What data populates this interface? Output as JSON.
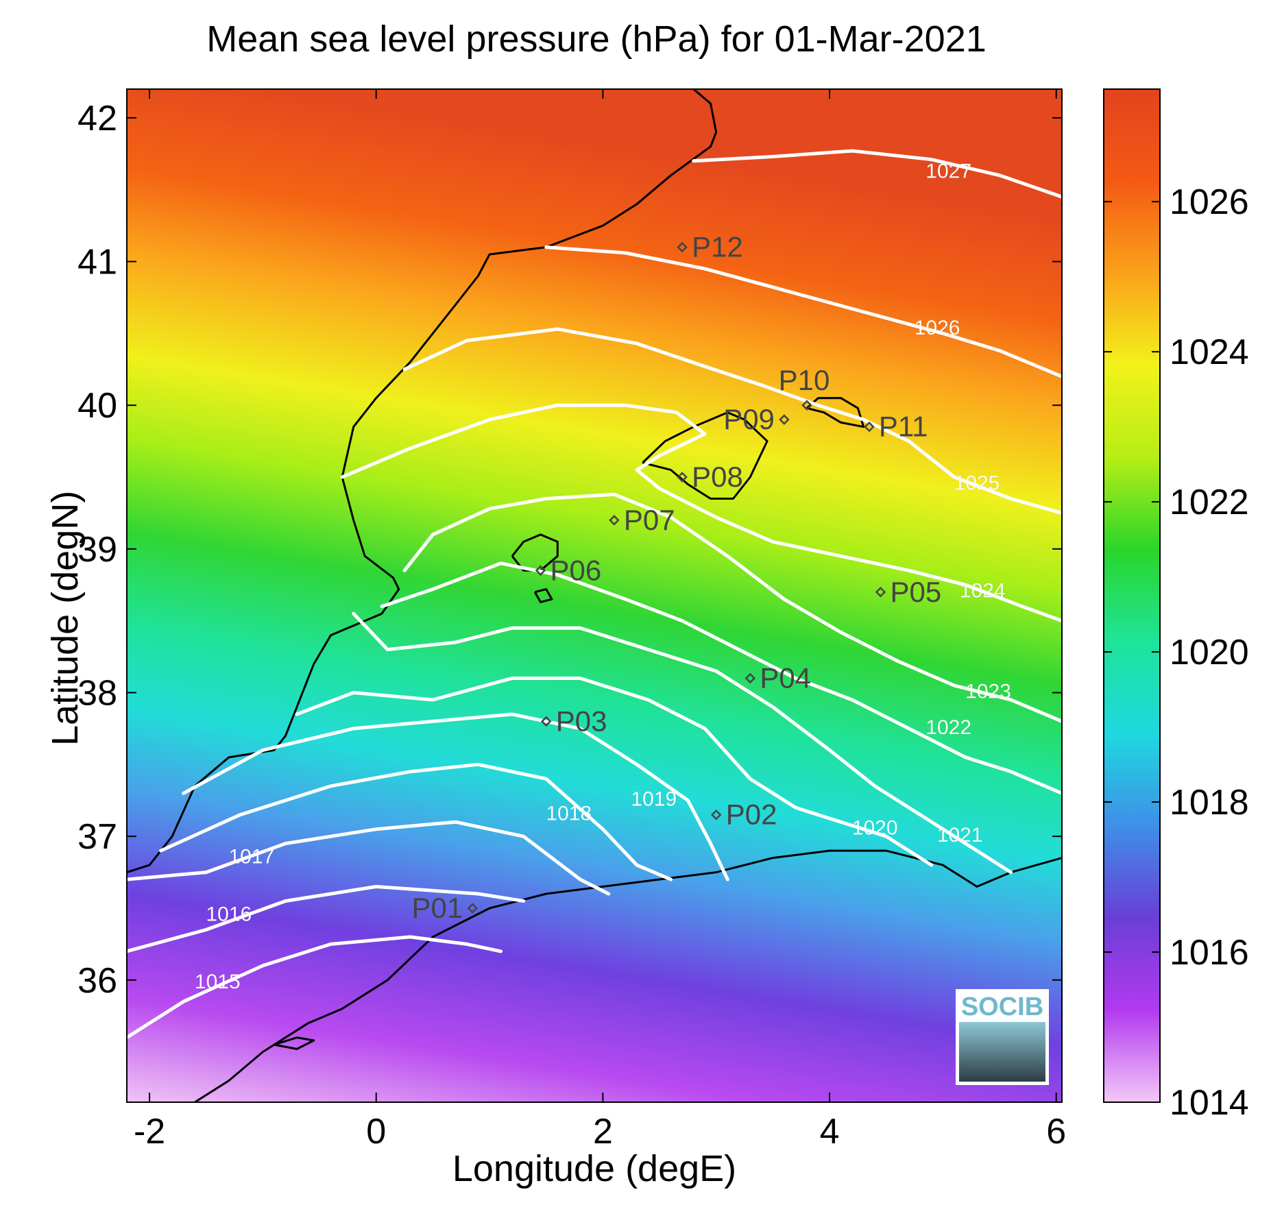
{
  "title": "Mean sea level pressure (hPa) for 01-Mar-2021",
  "xlabel": "Longitude (degE)",
  "ylabel": "Latitude (degN)",
  "logo_text": "SOCIB",
  "chart_data": {
    "type": "heatmap",
    "variable": "Mean sea level pressure",
    "units": "hPa",
    "date": "01-Mar-2021",
    "xlim": [
      -2.2,
      6.05
    ],
    "ylim": [
      35.15,
      42.2
    ],
    "xticks": [
      -2,
      0,
      2,
      4,
      6
    ],
    "yticks": [
      36,
      37,
      38,
      39,
      40,
      41,
      42
    ],
    "colorbar": {
      "range": [
        1014,
        1027.5
      ],
      "ticks": [
        1014,
        1016,
        1018,
        1020,
        1022,
        1024,
        1026
      ],
      "colors": [
        "#f3c8f6",
        "#b33af0",
        "#6a3ed6",
        "#3f8fe8",
        "#1fd8e0",
        "#1ee49a",
        "#2ad62a",
        "#b6ee16",
        "#f2f21a",
        "#fba11a",
        "#f45a14",
        "#e3431e"
      ]
    },
    "contour_levels": [
      1015,
      1016,
      1017,
      1018,
      1019,
      1020,
      1021,
      1022,
      1023,
      1024,
      1025,
      1026,
      1027
    ],
    "contours": [
      {
        "level": 1027,
        "points": [
          [
            2.8,
            41.7
          ],
          [
            3.5,
            41.73
          ],
          [
            4.2,
            41.77
          ],
          [
            4.9,
            41.71
          ],
          [
            5.5,
            41.6
          ],
          [
            6.05,
            41.45
          ]
        ],
        "label_at": [
          5.05,
          41.62
        ]
      },
      {
        "level": 1026,
        "points": [
          [
            1.5,
            41.1
          ],
          [
            2.2,
            41.06
          ],
          [
            2.9,
            40.95
          ],
          [
            3.6,
            40.8
          ],
          [
            4.3,
            40.65
          ],
          [
            5.0,
            40.5
          ],
          [
            5.5,
            40.38
          ],
          [
            6.05,
            40.2
          ]
        ],
        "label_at": [
          4.95,
          40.53
        ]
      },
      {
        "level": 1025,
        "points": [
          [
            0.25,
            40.25
          ],
          [
            0.8,
            40.45
          ],
          [
            1.6,
            40.53
          ],
          [
            2.3,
            40.43
          ],
          [
            2.9,
            40.27
          ],
          [
            3.4,
            40.14
          ],
          [
            3.9,
            40.0
          ],
          [
            4.3,
            39.9
          ],
          [
            4.7,
            39.75
          ],
          [
            5.1,
            39.5
          ],
          [
            5.6,
            39.35
          ],
          [
            6.05,
            39.25
          ]
        ],
        "label_at": [
          5.3,
          39.45
        ]
      },
      {
        "level": 1024,
        "points": [
          [
            -0.3,
            39.5
          ],
          [
            0.3,
            39.7
          ],
          [
            1.0,
            39.9
          ],
          [
            1.6,
            40.0
          ],
          [
            2.2,
            40.0
          ],
          [
            2.65,
            39.95
          ],
          [
            2.9,
            39.8
          ],
          [
            2.5,
            39.65
          ],
          [
            2.3,
            39.55
          ],
          [
            2.5,
            39.42
          ],
          [
            3.0,
            39.22
          ],
          [
            3.5,
            39.05
          ],
          [
            4.1,
            38.95
          ],
          [
            4.7,
            38.85
          ],
          [
            5.2,
            38.75
          ],
          [
            5.7,
            38.6
          ],
          [
            6.05,
            38.5
          ]
        ],
        "label_at": [
          5.35,
          38.7
        ]
      },
      {
        "level": 1023,
        "points": [
          [
            0.25,
            38.85
          ],
          [
            0.5,
            39.1
          ],
          [
            1.0,
            39.28
          ],
          [
            1.5,
            39.35
          ],
          [
            2.1,
            39.38
          ],
          [
            2.6,
            39.22
          ],
          [
            3.1,
            38.95
          ],
          [
            3.6,
            38.65
          ],
          [
            4.1,
            38.42
          ],
          [
            4.6,
            38.22
          ],
          [
            5.1,
            38.05
          ],
          [
            5.6,
            37.95
          ],
          [
            6.05,
            37.8
          ]
        ],
        "label_at": [
          5.4,
          38.0
        ]
      },
      {
        "level": 1022,
        "points": [
          [
            0.05,
            38.6
          ],
          [
            0.5,
            38.72
          ],
          [
            1.1,
            38.9
          ],
          [
            1.6,
            38.82
          ],
          [
            2.2,
            38.65
          ],
          [
            2.7,
            38.5
          ],
          [
            3.2,
            38.3
          ],
          [
            3.7,
            38.1
          ],
          [
            4.2,
            37.95
          ],
          [
            4.7,
            37.75
          ],
          [
            5.2,
            37.55
          ],
          [
            5.6,
            37.45
          ],
          [
            6.05,
            37.3
          ]
        ],
        "label_at": [
          5.05,
          37.75
        ]
      },
      {
        "level": 1021,
        "points": [
          [
            -0.2,
            38.55
          ],
          [
            0.1,
            38.3
          ],
          [
            0.7,
            38.35
          ],
          [
            1.2,
            38.45
          ],
          [
            1.8,
            38.45
          ],
          [
            2.4,
            38.3
          ],
          [
            3.0,
            38.15
          ],
          [
            3.5,
            37.9
          ],
          [
            4.0,
            37.6
          ],
          [
            4.4,
            37.35
          ],
          [
            4.8,
            37.15
          ],
          [
            5.2,
            36.95
          ],
          [
            5.6,
            36.75
          ]
        ],
        "label_at": [
          5.15,
          37.0
        ]
      },
      {
        "level": 1020,
        "points": [
          [
            -0.7,
            37.85
          ],
          [
            -0.2,
            38.0
          ],
          [
            0.5,
            37.95
          ],
          [
            1.2,
            38.1
          ],
          [
            1.8,
            38.1
          ],
          [
            2.4,
            37.95
          ],
          [
            2.9,
            37.75
          ],
          [
            3.3,
            37.4
          ],
          [
            3.7,
            37.2
          ],
          [
            4.1,
            37.1
          ],
          [
            4.5,
            37.0
          ],
          [
            4.9,
            36.8
          ]
        ],
        "label_at": [
          4.4,
          37.05
        ]
      },
      {
        "level": 1019,
        "points": [
          [
            -1.7,
            37.3
          ],
          [
            -1.0,
            37.6
          ],
          [
            -0.2,
            37.75
          ],
          [
            0.5,
            37.8
          ],
          [
            1.2,
            37.85
          ],
          [
            1.8,
            37.75
          ],
          [
            2.3,
            37.5
          ],
          [
            2.75,
            37.25
          ],
          [
            2.95,
            36.95
          ],
          [
            3.1,
            36.7
          ]
        ],
        "label_at": [
          2.45,
          37.25
        ]
      },
      {
        "level": 1018,
        "points": [
          [
            -1.9,
            36.9
          ],
          [
            -1.2,
            37.15
          ],
          [
            -0.4,
            37.35
          ],
          [
            0.3,
            37.45
          ],
          [
            0.9,
            37.5
          ],
          [
            1.5,
            37.4
          ],
          [
            2.0,
            37.05
          ],
          [
            2.3,
            36.8
          ],
          [
            2.6,
            36.7
          ]
        ],
        "label_at": [
          1.7,
          37.15
        ]
      },
      {
        "level": 1017,
        "points": [
          [
            -2.2,
            36.7
          ],
          [
            -1.5,
            36.75
          ],
          [
            -0.8,
            36.95
          ],
          [
            0.0,
            37.05
          ],
          [
            0.7,
            37.1
          ],
          [
            1.3,
            37.0
          ],
          [
            1.8,
            36.7
          ],
          [
            2.05,
            36.6
          ]
        ],
        "label_at": [
          -1.1,
          36.85
        ]
      },
      {
        "level": 1016,
        "points": [
          [
            -2.2,
            36.2
          ],
          [
            -1.5,
            36.35
          ],
          [
            -0.8,
            36.55
          ],
          [
            0.0,
            36.65
          ],
          [
            0.9,
            36.6
          ],
          [
            1.3,
            36.55
          ]
        ],
        "label_at": [
          -1.3,
          36.45
        ]
      },
      {
        "level": 1015,
        "points": [
          [
            -2.2,
            35.6
          ],
          [
            -1.7,
            35.85
          ],
          [
            -1.0,
            36.1
          ],
          [
            -0.4,
            36.25
          ],
          [
            0.3,
            36.3
          ],
          [
            0.8,
            36.25
          ],
          [
            1.1,
            36.2
          ]
        ],
        "label_at": [
          -1.4,
          35.98
        ]
      }
    ],
    "stations": [
      {
        "name": "P01",
        "lon": 0.85,
        "lat": 36.5,
        "label_side": "left"
      },
      {
        "name": "P02",
        "lon": 3.0,
        "lat": 37.15,
        "label_side": "right"
      },
      {
        "name": "P03",
        "lon": 1.5,
        "lat": 37.8,
        "label_side": "right"
      },
      {
        "name": "P04",
        "lon": 3.3,
        "lat": 38.1,
        "label_side": "right"
      },
      {
        "name": "P05",
        "lon": 4.45,
        "lat": 38.7,
        "label_side": "right"
      },
      {
        "name": "P06",
        "lon": 1.45,
        "lat": 38.85,
        "label_side": "right"
      },
      {
        "name": "P07",
        "lon": 2.1,
        "lat": 39.2,
        "label_side": "right"
      },
      {
        "name": "P08",
        "lon": 2.7,
        "lat": 39.5,
        "label_side": "right"
      },
      {
        "name": "P09",
        "lon": 3.6,
        "lat": 39.9,
        "label_side": "left"
      },
      {
        "name": "P10",
        "lon": 3.8,
        "lat": 40.0,
        "label_side": "above"
      },
      {
        "name": "P11",
        "lon": 4.35,
        "lat": 39.85,
        "label_side": "right"
      },
      {
        "name": "P12",
        "lon": 2.7,
        "lat": 41.1,
        "label_side": "right"
      }
    ],
    "coastlines": [
      {
        "name": "iberia",
        "points": [
          [
            2.8,
            42.2
          ],
          [
            2.95,
            42.1
          ],
          [
            3.0,
            41.9
          ],
          [
            2.95,
            41.8
          ],
          [
            2.6,
            41.6
          ],
          [
            2.3,
            41.4
          ],
          [
            2.0,
            41.25
          ],
          [
            1.5,
            41.1
          ],
          [
            1.0,
            41.05
          ],
          [
            0.9,
            40.9
          ],
          [
            0.7,
            40.7
          ],
          [
            0.55,
            40.55
          ],
          [
            0.3,
            40.3
          ],
          [
            0.0,
            40.05
          ],
          [
            -0.2,
            39.85
          ],
          [
            -0.3,
            39.5
          ],
          [
            -0.2,
            39.2
          ],
          [
            -0.1,
            38.95
          ],
          [
            0.15,
            38.8
          ],
          [
            0.2,
            38.72
          ],
          [
            0.05,
            38.55
          ],
          [
            -0.4,
            38.4
          ],
          [
            -0.55,
            38.2
          ],
          [
            -0.7,
            37.9
          ],
          [
            -0.8,
            37.7
          ],
          [
            -0.9,
            37.6
          ],
          [
            -1.3,
            37.55
          ],
          [
            -1.6,
            37.35
          ],
          [
            -1.8,
            37.0
          ],
          [
            -2.0,
            36.8
          ],
          [
            -2.2,
            36.75
          ]
        ]
      },
      {
        "name": "mallorca",
        "points": [
          [
            2.35,
            39.6
          ],
          [
            2.55,
            39.75
          ],
          [
            2.8,
            39.85
          ],
          [
            3.1,
            39.95
          ],
          [
            3.25,
            39.9
          ],
          [
            3.45,
            39.75
          ],
          [
            3.3,
            39.5
          ],
          [
            3.15,
            39.35
          ],
          [
            2.95,
            39.35
          ],
          [
            2.75,
            39.45
          ],
          [
            2.6,
            39.55
          ],
          [
            2.35,
            39.6
          ]
        ]
      },
      {
        "name": "menorca",
        "points": [
          [
            3.8,
            39.98
          ],
          [
            3.9,
            40.05
          ],
          [
            4.1,
            40.05
          ],
          [
            4.25,
            39.98
          ],
          [
            4.3,
            39.85
          ],
          [
            4.1,
            39.88
          ],
          [
            3.95,
            39.95
          ],
          [
            3.8,
            39.98
          ]
        ]
      },
      {
        "name": "ibiza",
        "points": [
          [
            1.2,
            38.95
          ],
          [
            1.3,
            39.05
          ],
          [
            1.45,
            39.1
          ],
          [
            1.6,
            39.05
          ],
          [
            1.6,
            38.95
          ],
          [
            1.45,
            38.85
          ],
          [
            1.3,
            38.85
          ],
          [
            1.2,
            38.95
          ]
        ]
      },
      {
        "name": "formentera",
        "points": [
          [
            1.4,
            38.7
          ],
          [
            1.5,
            38.72
          ],
          [
            1.55,
            38.65
          ],
          [
            1.45,
            38.63
          ],
          [
            1.4,
            38.7
          ]
        ]
      },
      {
        "name": "africa",
        "points": [
          [
            -1.6,
            35.15
          ],
          [
            -1.3,
            35.3
          ],
          [
            -1.0,
            35.5
          ],
          [
            -0.6,
            35.7
          ],
          [
            -0.3,
            35.8
          ],
          [
            0.1,
            36.0
          ],
          [
            0.5,
            36.3
          ],
          [
            1.0,
            36.5
          ],
          [
            1.5,
            36.6
          ],
          [
            2.0,
            36.65
          ],
          [
            2.5,
            36.7
          ],
          [
            3.0,
            36.75
          ],
          [
            3.5,
            36.85
          ],
          [
            4.0,
            36.9
          ],
          [
            4.5,
            36.9
          ],
          [
            5.0,
            36.8
          ],
          [
            5.3,
            36.65
          ],
          [
            5.6,
            36.75
          ],
          [
            6.05,
            36.85
          ]
        ]
      },
      {
        "name": "alboran",
        "points": [
          [
            -0.9,
            35.55
          ],
          [
            -0.7,
            35.6
          ],
          [
            -0.55,
            35.58
          ],
          [
            -0.7,
            35.52
          ],
          [
            -0.9,
            35.55
          ]
        ]
      }
    ]
  }
}
